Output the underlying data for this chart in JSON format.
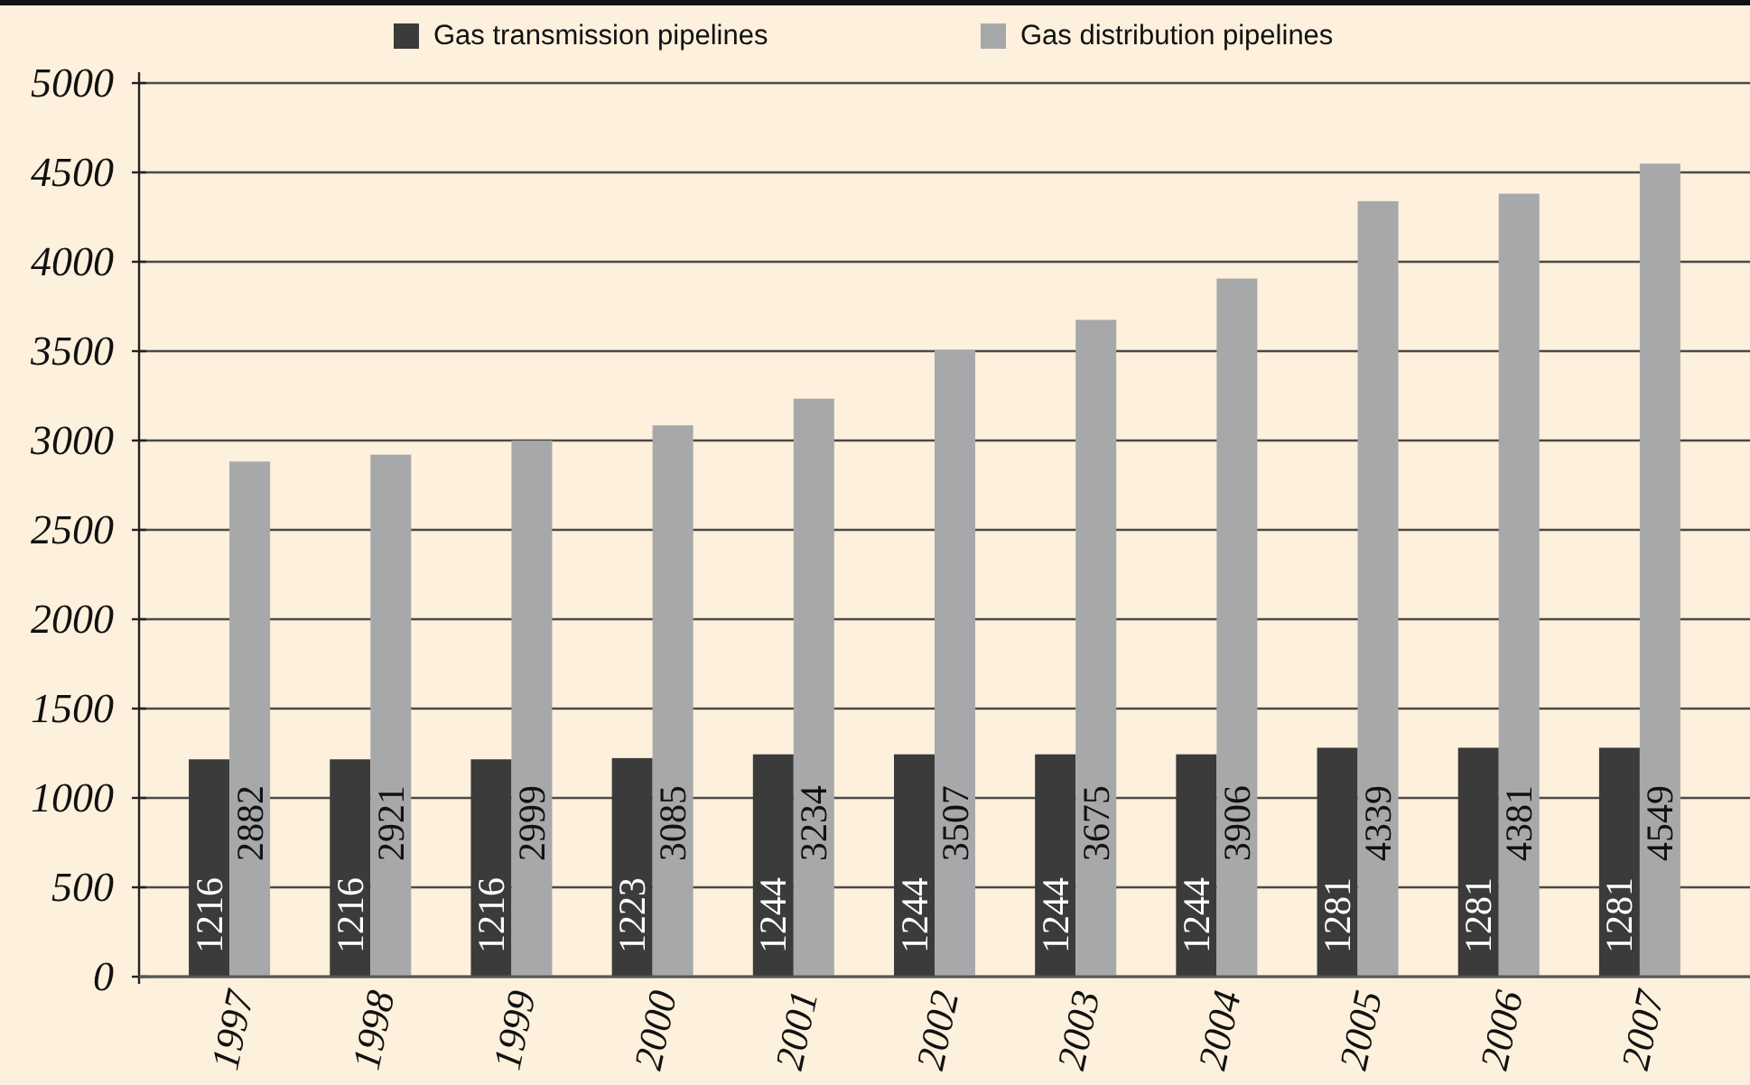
{
  "chart_data": {
    "type": "bar",
    "categories": [
      "1997",
      "1998",
      "1999",
      "2000",
      "2001",
      "2002",
      "2003",
      "2004",
      "2005",
      "2006",
      "2007"
    ],
    "series": [
      {
        "name": "Gas transmission pipelines",
        "color": "#3a3b3a",
        "values": [
          1216,
          1216,
          1216,
          1223,
          1244,
          1244,
          1244,
          1244,
          1281,
          1281,
          1281
        ]
      },
      {
        "name": "Gas distribution pipelines",
        "color": "#a7a8aa",
        "values": [
          2882,
          2921,
          2999,
          3085,
          3234,
          3507,
          3675,
          3906,
          4339,
          4381,
          4549
        ]
      }
    ],
    "ylim": [
      0,
      5000
    ],
    "yticks": [
      0,
      500,
      1000,
      1500,
      2000,
      2500,
      3000,
      3500,
      4000,
      4500,
      5000
    ],
    "grid": "y",
    "legend": "top",
    "data_labels": true
  }
}
